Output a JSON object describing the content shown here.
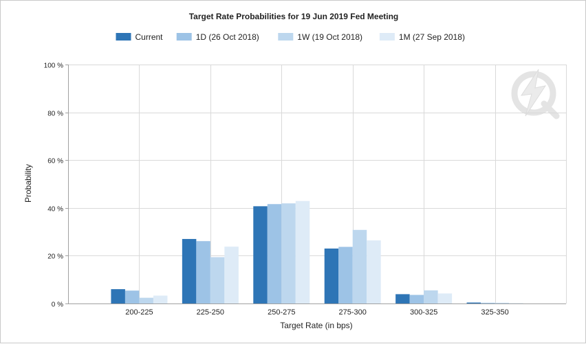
{
  "chart_data": {
    "type": "bar",
    "title": "Target Rate Probabilities for 19 Jun 2019 Fed Meeting",
    "xlabel": "Target Rate (in bps)",
    "ylabel": "Probability",
    "ylim": [
      0,
      100
    ],
    "y_ticks": [
      0,
      20,
      40,
      60,
      80,
      100
    ],
    "y_tick_labels": [
      "0 %",
      "20 %",
      "40 %",
      "60 %",
      "80 %",
      "100 %"
    ],
    "grid": true,
    "legend_position": "top-center",
    "categories": [
      "200-225",
      "225-250",
      "250-275",
      "275-300",
      "300-325",
      "325-350"
    ],
    "series": [
      {
        "name": "Current",
        "color": "#2e75b6",
        "values": [
          6.0,
          27.0,
          40.7,
          23.0,
          3.9,
          0.4
        ]
      },
      {
        "name": "1D (26 Oct 2018)",
        "color": "#9dc3e6",
        "values": [
          5.4,
          26.1,
          41.6,
          23.7,
          3.6,
          0.3
        ]
      },
      {
        "name": "1W (19 Oct 2018)",
        "color": "#bdd7ee",
        "values": [
          2.4,
          19.4,
          41.9,
          30.8,
          5.5,
          0.3
        ]
      },
      {
        "name": "1M (27 Sep 2018)",
        "color": "#deebf7",
        "values": [
          3.3,
          23.8,
          42.9,
          26.4,
          4.2,
          0.2
        ]
      }
    ]
  },
  "colors": {
    "grid": "#d9d9d9",
    "axis": "#a0a0a0",
    "text": "#222222",
    "watermark": "#e4e4e4"
  },
  "watermark_icon": "lightning-q-logo-icon"
}
